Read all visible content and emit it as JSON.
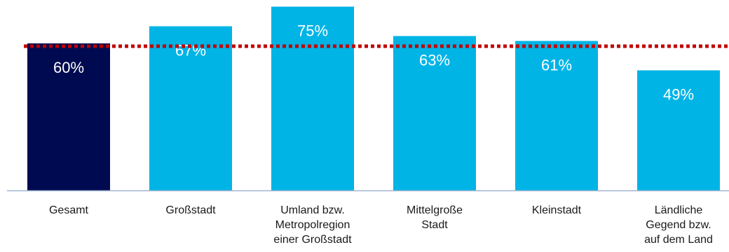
{
  "chart_data": {
    "type": "bar",
    "title": "",
    "xlabel": "",
    "ylabel": "",
    "ylim": [
      0,
      100
    ],
    "grid": false,
    "legend": "none",
    "categories": [
      [
        "Gesamt"
      ],
      [
        "Großstadt"
      ],
      [
        "Umland bzw.",
        "Metropolregion",
        "einer Großstadt"
      ],
      [
        "Mittelgroße",
        "Stadt"
      ],
      [
        "Kleinstadt"
      ],
      [
        "Ländliche",
        "Gegend bzw.",
        "auf dem Land"
      ]
    ],
    "values": [
      60,
      67,
      75,
      63,
      61,
      49
    ],
    "value_labels": [
      "60%",
      "67%",
      "75%",
      "63%",
      "61%",
      "49%"
    ],
    "reference_line": {
      "value": 60,
      "style": "dotted"
    },
    "colors": {
      "highlight": "#000a50",
      "bar": "#00b4e6",
      "reference_line": "#c00000",
      "axis": "#a0b4d2"
    },
    "highlight_index": 0
  }
}
